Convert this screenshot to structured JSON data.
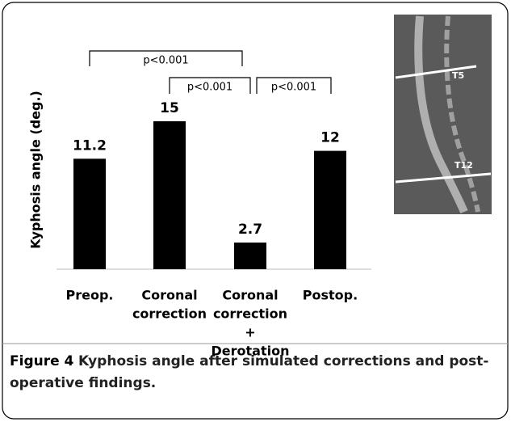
{
  "chart_data": {
    "type": "bar",
    "y_label": "Kyphosis angle (deg.)",
    "categories": [
      [
        "Preop."
      ],
      [
        "Coronal",
        "correction"
      ],
      [
        "Coronal",
        "correction",
        "+",
        "Derotation"
      ],
      [
        "Postop."
      ]
    ],
    "values": [
      11.2,
      15,
      2.7,
      12
    ],
    "color": "#000000",
    "annotations": [
      "p<0.001",
      "p<0.001",
      "p<0.001"
    ]
  },
  "image": {
    "labels": [
      "T5",
      "T12"
    ]
  },
  "caption": {
    "label": "Figure 4",
    "lines": [
      "Kyphosis angle after simulated corrections and post-",
      "operative findings."
    ]
  }
}
